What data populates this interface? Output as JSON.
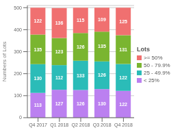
{
  "chart_data": {
    "type": "bar",
    "stacked": true,
    "data_labels": true,
    "grid": true,
    "legend": "right",
    "legend_title": "Lots",
    "ylabel": "Numbers of Lots",
    "categories": [
      "Q4 2017",
      "Q1 2018",
      "Q2 2018",
      "Q3 2018",
      "Q4 2018"
    ],
    "series": [
      {
        "name": "< 25%",
        "color": "#bb80f0",
        "values": [
          113,
          127,
          126,
          130,
          122
        ]
      },
      {
        "name": "25 - 49.9%",
        "color": "#2bbcb8",
        "values": [
          130,
          112,
          133,
          126,
          122
        ]
      },
      {
        "name": "50 - 79.9%",
        "color": "#7ab530",
        "values": [
          135,
          123,
          126,
          135,
          131
        ]
      },
      {
        "name": ">= 50%",
        "color": "#f07070",
        "values": [
          122,
          136,
          115,
          109,
          125
        ]
      }
    ],
    "ylim": [
      0,
      510
    ],
    "yticks": [
      0,
      100,
      200,
      300,
      400,
      500
    ]
  }
}
